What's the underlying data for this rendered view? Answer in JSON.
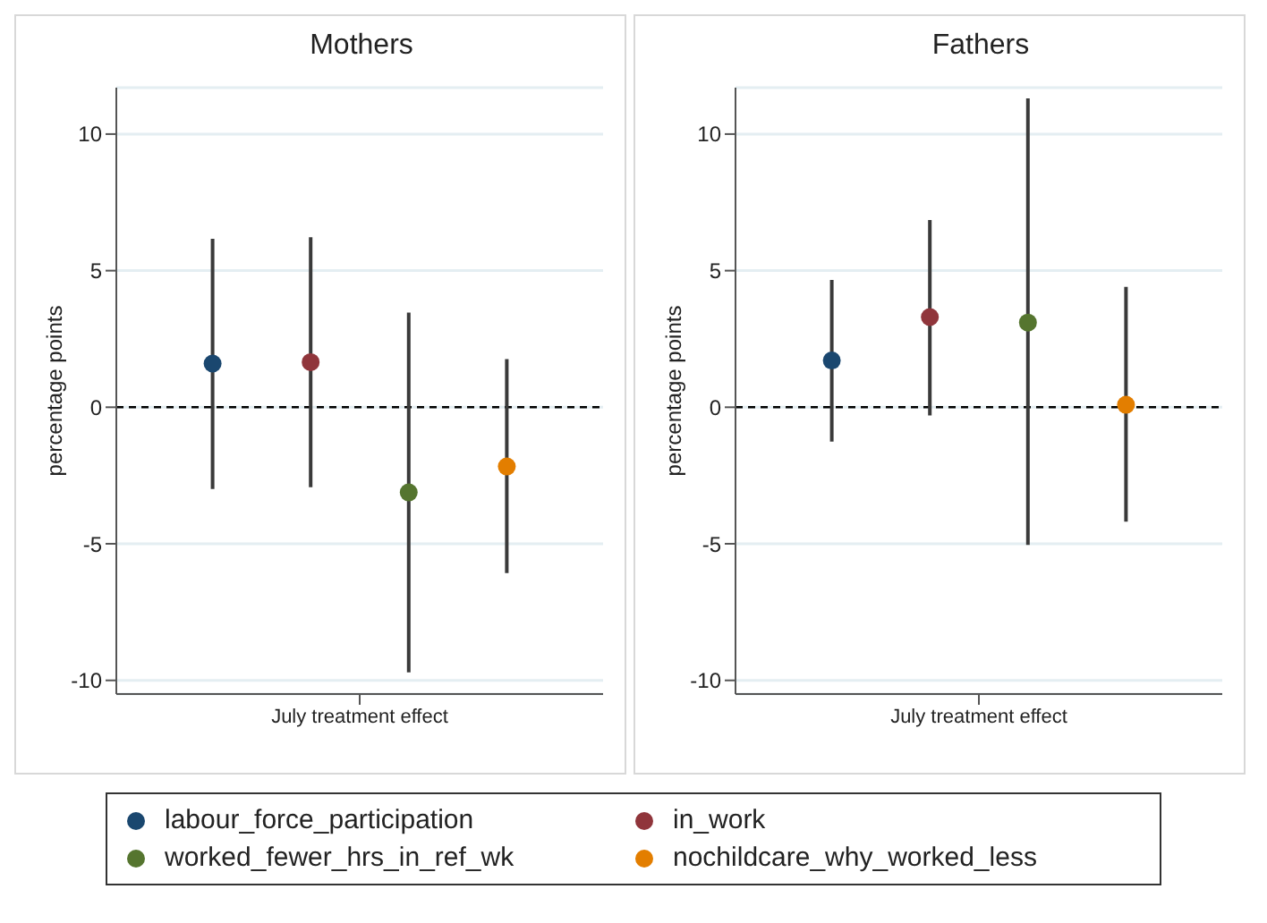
{
  "chart_data": [
    {
      "type": "scatter",
      "title": "Mothers",
      "ylabel": "percentage points",
      "categories": [
        "July treatment effect"
      ],
      "ylim": [
        -10.5,
        11.7
      ],
      "yticks": [
        -10,
        -5,
        0,
        5,
        10
      ],
      "grid": "y",
      "marker": "circle",
      "legend": "bottom",
      "ref_lines": [
        {
          "axis": "y",
          "value": 0,
          "color": "#000000",
          "line_style": "dashed"
        }
      ],
      "series": [
        {
          "name": "labour_force_participation",
          "color": "#1a476f",
          "values": [
            1.6
          ],
          "errors": [
            [
              -2.97,
              6.14
            ]
          ]
        },
        {
          "name": "in_work",
          "color": "#90353b",
          "values": [
            1.65
          ],
          "errors": [
            [
              -2.9,
              6.2
            ]
          ]
        },
        {
          "name": "worked_fewer_hrs_in_ref_wk",
          "color": "#55752f",
          "values": [
            -3.12
          ],
          "errors": [
            [
              -9.67,
              3.43
            ]
          ]
        },
        {
          "name": "nochildcare_why_worked_less",
          "color": "#e37e00",
          "values": [
            -2.17
          ],
          "errors": [
            [
              -6.05,
              1.74
            ]
          ]
        }
      ]
    },
    {
      "type": "scatter",
      "title": "Fathers",
      "ylabel": "percentage points",
      "categories": [
        "July treatment effect"
      ],
      "ylim": [
        -10.5,
        11.7
      ],
      "yticks": [
        -10,
        -5,
        0,
        5,
        10
      ],
      "grid": "y",
      "marker": "circle",
      "ref_lines": [
        {
          "axis": "y",
          "value": 0,
          "color": "#000000",
          "line_style": "dashed"
        }
      ],
      "series": [
        {
          "color": "#1a476f",
          "values": [
            1.71
          ],
          "errors": [
            [
              -1.24,
              4.64
            ]
          ]
        },
        {
          "color": "#90353b",
          "values": [
            3.3
          ],
          "errors": [
            [
              -0.28,
              6.83
            ]
          ]
        },
        {
          "color": "#55752f",
          "values": [
            3.1
          ],
          "errors": [
            [
              -4.99,
              11.26
            ]
          ]
        },
        {
          "color": "#e37e00",
          "values": [
            0.09
          ],
          "errors": [
            [
              -4.16,
              4.38
            ]
          ]
        }
      ]
    }
  ]
}
